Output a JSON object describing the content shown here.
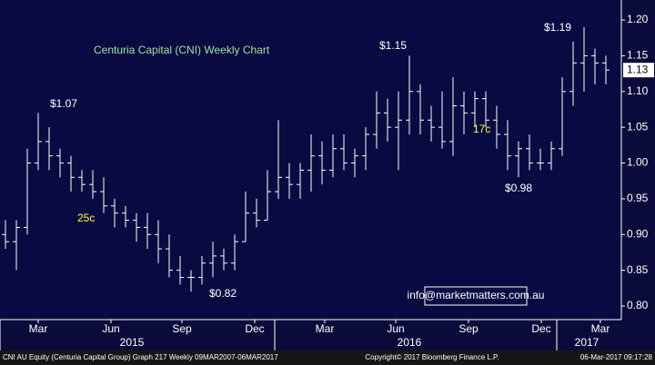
{
  "chart_data": {
    "type": "ohlc",
    "title": "Centuria Capital (CNI) Weekly Chart",
    "color": "#ffffff",
    "open": [
      0.9,
      0.89,
      0.91,
      1.0,
      1.03,
      1.01,
      1.0,
      0.98,
      0.97,
      0.96,
      0.94,
      0.93,
      0.92,
      0.91,
      0.9,
      0.88,
      0.85,
      0.84,
      0.84,
      0.86,
      0.87,
      0.86,
      0.89,
      0.93,
      0.92,
      0.96,
      0.98,
      0.97,
      0.99,
      1.01,
      0.99,
      1.02,
      1.0,
      1.01,
      1.04,
      1.07,
      1.05,
      1.06,
      1.1,
      1.06,
      1.05,
      1.03,
      1.08,
      1.07,
      1.09,
      1.06,
      1.04,
      1.01,
      1.02,
      1.0,
      1.0,
      1.02,
      1.1,
      1.14,
      1.15,
      1.14
    ],
    "high": [
      0.92,
      0.92,
      1.02,
      1.07,
      1.05,
      1.02,
      1.01,
      0.99,
      0.99,
      0.98,
      0.95,
      0.94,
      0.93,
      0.93,
      0.92,
      0.9,
      0.87,
      0.85,
      0.87,
      0.89,
      0.88,
      0.9,
      0.96,
      0.95,
      0.99,
      1.06,
      1.0,
      1.0,
      1.04,
      1.03,
      1.04,
      1.04,
      1.02,
      1.05,
      1.1,
      1.09,
      1.1,
      1.15,
      1.11,
      1.08,
      1.1,
      1.12,
      1.1,
      1.1,
      1.1,
      1.08,
      1.06,
      1.03,
      1.04,
      1.02,
      1.03,
      1.12,
      1.17,
      1.19,
      1.16,
      1.15
    ],
    "low": [
      0.88,
      0.85,
      0.9,
      0.99,
      0.99,
      0.98,
      0.96,
      0.96,
      0.95,
      0.93,
      0.91,
      0.91,
      0.89,
      0.88,
      0.86,
      0.84,
      0.83,
      0.82,
      0.83,
      0.84,
      0.85,
      0.85,
      0.89,
      0.91,
      0.92,
      0.95,
      0.95,
      0.95,
      0.96,
      0.97,
      0.98,
      0.99,
      0.98,
      0.99,
      1.02,
      1.03,
      0.99,
      1.04,
      1.04,
      1.03,
      1.02,
      1.01,
      1.04,
      1.05,
      1.05,
      1.02,
      0.99,
      0.98,
      0.99,
      0.99,
      0.99,
      1.01,
      1.08,
      1.1,
      1.11,
      1.11
    ],
    "close": [
      0.89,
      0.91,
      1.0,
      1.03,
      1.01,
      1.0,
      0.98,
      0.97,
      0.96,
      0.94,
      0.93,
      0.92,
      0.91,
      0.9,
      0.88,
      0.85,
      0.84,
      0.84,
      0.86,
      0.87,
      0.86,
      0.89,
      0.93,
      0.92,
      0.96,
      0.98,
      0.97,
      0.99,
      1.01,
      0.99,
      1.02,
      1.0,
      1.01,
      1.04,
      1.07,
      1.05,
      1.06,
      1.1,
      1.06,
      1.05,
      1.03,
      1.08,
      1.07,
      1.09,
      1.06,
      1.04,
      1.01,
      1.02,
      1.0,
      1.0,
      1.02,
      1.1,
      1.14,
      1.15,
      1.14,
      1.13
    ],
    "last_value": 1.13,
    "ylim": [
      0.781,
      1.228
    ],
    "yticks": [
      {
        "value": 0.8,
        "label": "0.80"
      },
      {
        "value": 0.85,
        "label": "0.85"
      },
      {
        "value": 0.9,
        "label": "0.90"
      },
      {
        "value": 0.95,
        "label": "0.95"
      },
      {
        "value": 1.0,
        "label": "1.00"
      },
      {
        "value": 1.05,
        "label": "1.05"
      },
      {
        "value": 1.1,
        "label": "1.10"
      },
      {
        "value": 1.15,
        "label": "1.15"
      },
      {
        "value": 1.2,
        "label": "1.20"
      }
    ],
    "x_labels": [
      "Mar",
      "Jun",
      "Sep",
      "Dec",
      "Mar",
      "Jun",
      "Sep",
      "Dec",
      "Mar"
    ],
    "year_labels": [
      "2015",
      "2016",
      "2017"
    ],
    "annotations": [
      "$1.07",
      "$1.15",
      "$1.19",
      "$0.82",
      "$0.98",
      "25c",
      "17c"
    ],
    "link": "info@marketmatters.com.au",
    "footer": [
      "CNI AU Equity (Centuria Capital Group) Graph 217  Weekly 09MAR2007-06MAR2017",
      "Copyright© 2017 Bloomberg Finance L.P.",
      "06-Mar-2017 09:17:28"
    ]
  }
}
